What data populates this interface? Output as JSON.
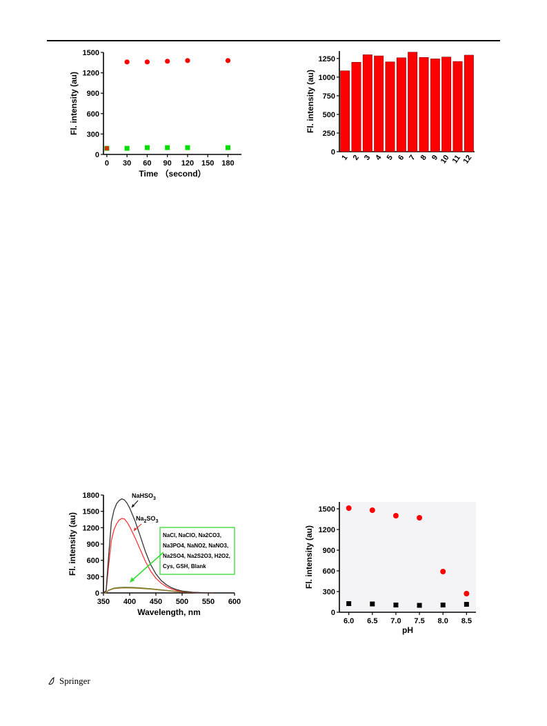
{
  "page": {
    "publisher": "Springer"
  },
  "chart_data": [
    {
      "type": "scatter",
      "title": "",
      "xlabel": "Time （second）",
      "ylabel": "Fl. intensity (au)",
      "xlim": [
        -5,
        200
      ],
      "ylim": [
        0,
        1500
      ],
      "xticks": [
        0,
        30,
        60,
        90,
        120,
        150,
        180
      ],
      "yticks": [
        0,
        300,
        600,
        900,
        1200,
        1500
      ],
      "grid": false,
      "series": [
        {
          "name": "",
          "color": "#ff0000",
          "marker": "circle",
          "x": [
            0,
            30,
            60,
            90,
            120,
            180
          ],
          "y": [
            90,
            1360,
            1360,
            1370,
            1380,
            1380
          ]
        },
        {
          "name": "",
          "color": "#00dd00",
          "marker": "square",
          "x": [
            0,
            30,
            60,
            90,
            120,
            180
          ],
          "y": [
            90,
            90,
            100,
            100,
            100,
            100
          ]
        }
      ]
    },
    {
      "type": "bar",
      "title": "",
      "xlabel": "",
      "ylabel": "Fl. intensity (au)",
      "ylim": [
        0,
        1350
      ],
      "yticks": [
        0,
        250,
        500,
        750,
        1000,
        1250
      ],
      "grid": false,
      "bar_color": "#ff0000",
      "categories": [
        "1",
        "2",
        "3",
        "4",
        "5",
        "6",
        "7",
        "8",
        "9",
        "10",
        "11",
        "12"
      ],
      "values": [
        1085,
        1200,
        1300,
        1285,
        1205,
        1260,
        1335,
        1265,
        1245,
        1270,
        1210,
        1295
      ]
    },
    {
      "type": "line",
      "title": "",
      "xlabel": "Wavelength, nm",
      "ylabel": "Fl. intensity (au)",
      "xlim": [
        350,
        600
      ],
      "ylim": [
        0,
        1800
      ],
      "xticks": [
        350,
        400,
        450,
        500,
        550,
        600
      ],
      "yticks": [
        0,
        300,
        600,
        900,
        1200,
        1500,
        1800
      ],
      "grid": false,
      "series": [
        {
          "name": "NaHSO3",
          "color": "#333333",
          "x": [
            350,
            355,
            360,
            365,
            370,
            375,
            380,
            385,
            390,
            395,
            400,
            410,
            420,
            430,
            440,
            450,
            460,
            470,
            480,
            490,
            500,
            520,
            540,
            560
          ],
          "y": [
            0,
            40,
            700,
            1300,
            1520,
            1640,
            1700,
            1730,
            1710,
            1650,
            1560,
            1330,
            1050,
            760,
            520,
            350,
            230,
            150,
            95,
            60,
            35,
            12,
            4,
            0
          ]
        },
        {
          "name": "Na2SO3",
          "color": "#ff3333",
          "x": [
            350,
            355,
            360,
            365,
            370,
            375,
            380,
            385,
            390,
            395,
            400,
            410,
            420,
            430,
            440,
            450,
            460,
            470,
            480,
            490,
            500,
            520,
            540,
            560
          ],
          "y": [
            0,
            30,
            520,
            960,
            1160,
            1270,
            1340,
            1370,
            1360,
            1300,
            1220,
            1020,
            800,
            580,
            400,
            270,
            180,
            115,
            72,
            45,
            28,
            9,
            3,
            0
          ]
        },
        {
          "name": "",
          "color": "#8a7a30",
          "x": [
            350,
            355,
            360,
            370,
            380,
            390,
            400,
            410,
            420,
            440,
            460,
            480,
            500,
            520,
            540,
            560
          ],
          "y": [
            0,
            5,
            50,
            85,
            95,
            100,
            98,
            95,
            90,
            75,
            55,
            35,
            18,
            8,
            3,
            0
          ]
        }
      ],
      "annotations": [
        {
          "text": "NaHSO",
          "sub": "3"
        },
        {
          "text": "Na",
          "sub": "2",
          "text2": "SO",
          "sub2": "3"
        }
      ],
      "legend_box": {
        "color": "#33dd33",
        "line1": "NaCl, NaClO, Na2CO3,",
        "line2": "Na3PO4, NaNO2, NaNO3,",
        "line3": "Na2SO4, Na2S2O3, H2O2,",
        "line4": "Cys, GSH, Blank"
      }
    },
    {
      "type": "scatter",
      "title": "",
      "xlabel": "pH",
      "ylabel": "Fl. intensity (au)",
      "xlim": [
        5.8,
        8.7
      ],
      "ylim": [
        0,
        1600
      ],
      "xticks": [
        "6.0",
        "6.5",
        "7.0",
        "7.5",
        "8.0",
        "8.5"
      ],
      "yticks": [
        0,
        300,
        600,
        900,
        1200,
        1500
      ],
      "grid": false,
      "series": [
        {
          "name": "",
          "color": "#ff0000",
          "marker": "circle",
          "x": [
            6.0,
            6.5,
            7.0,
            7.5,
            8.0,
            8.5
          ],
          "y": [
            1510,
            1480,
            1400,
            1370,
            590,
            270
          ]
        },
        {
          "name": "",
          "color": "#000000",
          "marker": "square",
          "x": [
            6.0,
            6.5,
            7.0,
            7.5,
            8.0,
            8.5
          ],
          "y": [
            125,
            120,
            105,
            100,
            105,
            115
          ]
        }
      ]
    }
  ]
}
